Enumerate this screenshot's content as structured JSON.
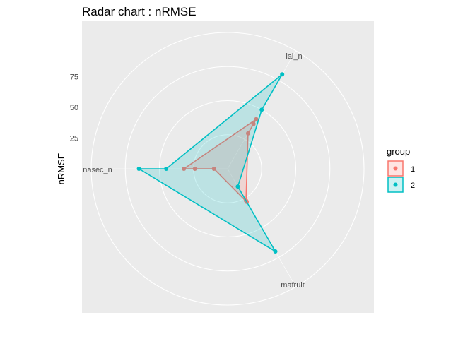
{
  "chart_data": {
    "type": "radar",
    "title": "Radar chart : nRMSE",
    "ylabel": "nRMSE",
    "axes": [
      "lai_n",
      "mafruit",
      "nasec_n"
    ],
    "radial_ticks": [
      "25",
      "50",
      "75"
    ],
    "radial_tick_values": [
      25,
      50,
      75
    ],
    "rmax": 100,
    "grid": true,
    "legend": {
      "title": "group",
      "position": "right"
    },
    "series": [
      {
        "name": "1",
        "color": "#F8766D",
        "traces": [
          {
            "lai_n": 42,
            "mafruit": 28,
            "nasec_n": 10
          },
          {
            "lai_n": 38,
            "mafruit": 28,
            "nasec_n": 24
          },
          {
            "lai_n": 30,
            "mafruit": 27,
            "nasec_n": 32
          }
        ]
      },
      {
        "name": "2",
        "color": "#00BFC4",
        "traces": [
          {
            "lai_n": 80,
            "mafruit": 70,
            "nasec_n": 65
          },
          {
            "lai_n": 50,
            "mafruit": 15,
            "nasec_n": 45
          }
        ]
      }
    ]
  }
}
